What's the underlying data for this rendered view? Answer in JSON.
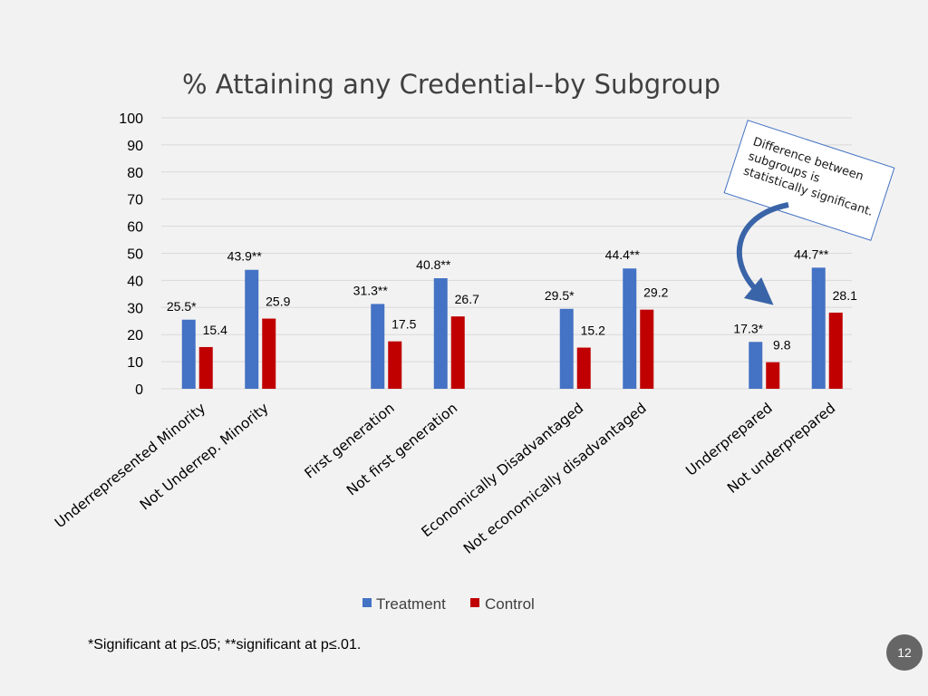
{
  "colors": {
    "treatment": "#4472c4",
    "control": "#c00000",
    "grid": "#d9d9d9",
    "callout_border": "#4472c4",
    "arrow": "#3a64a8",
    "page_badge": "#666666"
  },
  "chart_data": {
    "type": "bar",
    "title": "% Attaining any Credential--by Subgroup",
    "xlabel": "",
    "ylabel": "",
    "ylim": [
      0,
      100
    ],
    "yticks": [
      0,
      10,
      20,
      30,
      40,
      50,
      60,
      70,
      80,
      90,
      100
    ],
    "grid": true,
    "legend_position": "bottom",
    "categories": [
      "Underrepresented Minority",
      "Not Underrep. Minority",
      "First generation",
      "Not first generation",
      "Economically Disadvantaged",
      "Not economically disadvantaged",
      "Underprepared",
      "Not underprepared"
    ],
    "groups": [
      [
        0,
        1
      ],
      [
        2,
        3
      ],
      [
        4,
        5
      ],
      [
        6,
        7
      ]
    ],
    "series": [
      {
        "name": "Treatment",
        "values": [
          25.5,
          43.9,
          31.3,
          40.8,
          29.5,
          44.4,
          17.3,
          44.7
        ],
        "labels": [
          "25.5*",
          "43.9**",
          "31.3**",
          "40.8**",
          "29.5*",
          "44.4**",
          "17.3*",
          "44.7**"
        ]
      },
      {
        "name": "Control",
        "values": [
          15.4,
          25.9,
          17.5,
          26.7,
          15.2,
          29.2,
          9.8,
          28.1
        ],
        "labels": [
          "15.4",
          "25.9",
          "17.5",
          "26.7",
          "15.2",
          "29.2",
          "9.8",
          "28.1"
        ]
      }
    ]
  },
  "callout": {
    "lines": [
      "Difference between",
      "subgroups is",
      "statistically significant."
    ]
  },
  "footnote": "*Significant at p≤.05; **significant at p≤.01.",
  "page_number": "12"
}
